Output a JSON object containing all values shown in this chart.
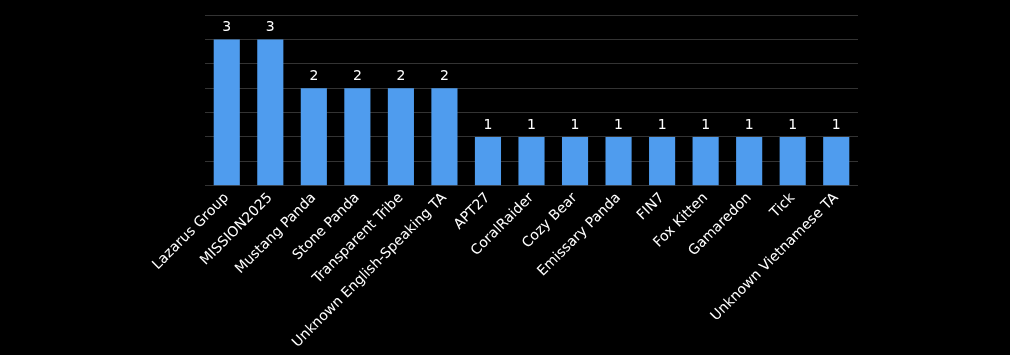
{
  "chart_data": {
    "type": "bar",
    "categories": [
      "Lazarus Group",
      "MISSION2025",
      "Mustang Panda",
      "Stone Panda",
      "Transparent Tribe",
      "Unknown English-Speaking TA",
      "APT27",
      "CoralRaider",
      "Cozy Bear",
      "Emissary Panda",
      "FIN7",
      "Fox Kitten",
      "Gamaredon",
      "Tick",
      "Unknown Vietnamese TA"
    ],
    "values": [
      3,
      3,
      2,
      2,
      2,
      2,
      1,
      1,
      1,
      1,
      1,
      1,
      1,
      1,
      1
    ],
    "color": "#4f9cee",
    "ylim": [
      0,
      3.5
    ],
    "yticks": [
      {
        "value": 0,
        "label": null
      },
      {
        "value": 0.5,
        "label": null
      },
      {
        "value": 1,
        "label": null
      },
      {
        "value": 1.5,
        "label": null
      },
      {
        "value": 2,
        "label": null
      },
      {
        "value": 2.5,
        "label": null
      },
      {
        "value": 3,
        "label": null
      },
      {
        "value": 3.5,
        "label": null
      }
    ],
    "grid": "y",
    "tick_labels": "x",
    "data_labels": true,
    "legend": false
  }
}
